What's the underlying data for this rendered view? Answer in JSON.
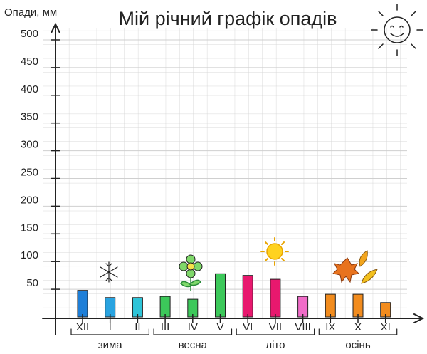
{
  "chart_data": {
    "type": "bar",
    "title": "Мій річний графік опадів",
    "y_label": "Опади, мм",
    "categories": [
      "XII",
      "I",
      "II",
      "III",
      "IV",
      "V",
      "VI",
      "VII",
      "VIII",
      "IX",
      "X",
      "XI"
    ],
    "values": [
      48,
      35,
      35,
      37,
      32,
      78,
      75,
      68,
      37,
      41,
      41,
      26
    ],
    "colors": [
      "#1e7fd8",
      "#29a3e0",
      "#2ec4d8",
      "#3cc85a",
      "#3cc85a",
      "#3cc85a",
      "#e8186e",
      "#e8186e",
      "#f06cc8",
      "#f28c1e",
      "#f28c1e",
      "#f28c1e"
    ],
    "season_labels": [
      "зима",
      "весна",
      "літо",
      "осінь"
    ],
    "ylim": [
      0,
      520
    ],
    "yticks": [
      50,
      100,
      150,
      200,
      250,
      300,
      350,
      400,
      450,
      500
    ],
    "grid": true
  }
}
